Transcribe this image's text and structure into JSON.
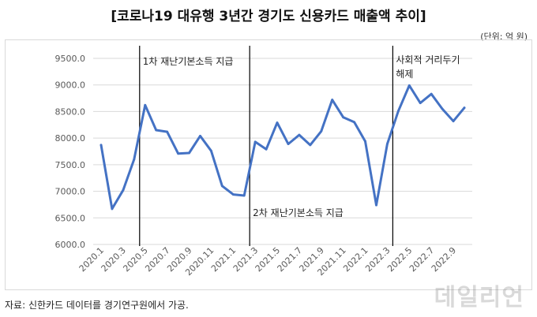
{
  "title": "[코로나19 대유행 3년간 경기도 신용카드 매출액 추이]",
  "unit": "(단위: 억 원)",
  "source": "자료: 신한카드 데이터를 경기연구원에서 가공.",
  "watermark": "데일리언",
  "chart_data": {
    "type": "line",
    "x": [
      "2020.1",
      "2020.2",
      "2020.3",
      "2020.4",
      "2020.5",
      "2020.6",
      "2020.7",
      "2020.8",
      "2020.9",
      "2020.10",
      "2020.11",
      "2020.12",
      "2021.1",
      "2021.2",
      "2021.3",
      "2021.4",
      "2021.5",
      "2021.6",
      "2021.7",
      "2021.8",
      "2021.9",
      "2021.10",
      "2021.11",
      "2021.12",
      "2022.1",
      "2022.2",
      "2022.3",
      "2022.4",
      "2022.5",
      "2022.6",
      "2022.7",
      "2022.8",
      "2022.9",
      "2022.10"
    ],
    "xtick_labels": [
      "2020.1",
      "2020.3",
      "2020.5",
      "2020.7",
      "2020.9",
      "2020.11",
      "2021.1",
      "2021.3",
      "2021.5",
      "2021.7",
      "2021.9",
      "2021.11",
      "2022.1",
      "2022.3",
      "2022.5",
      "2022.7",
      "2022.9"
    ],
    "series": [
      {
        "values": [
          7870,
          6670,
          7020,
          7600,
          8620,
          8150,
          8120,
          7710,
          7720,
          8040,
          7760,
          7100,
          6940,
          6920,
          7930,
          7790,
          8290,
          7890,
          8060,
          7870,
          8130,
          8720,
          8390,
          8300,
          7940,
          6740,
          7890,
          8510,
          8990,
          8660,
          8830,
          8550,
          8320,
          8570
        ]
      }
    ],
    "ylim": [
      6000,
      9500
    ],
    "yticks": [
      "6000.0",
      "6500.0",
      "7000.0",
      "7500.0",
      "8000.0",
      "8500.0",
      "9000.0",
      "9500.0"
    ],
    "grid": true,
    "color": "#4472c4",
    "annotations": [
      {
        "text": "1차 재난기본소득 지급",
        "x_between": [
          "2020.4",
          "2020.5"
        ]
      },
      {
        "text": "2차 재난기본소득 지급",
        "x_between": [
          "2021.2",
          "2021.3"
        ]
      },
      {
        "text": "사회적 거리두기 해제",
        "lines": [
          "사회적 거리두기",
          "해제"
        ],
        "x_between": [
          "2022.3",
          "2022.4"
        ]
      }
    ]
  }
}
